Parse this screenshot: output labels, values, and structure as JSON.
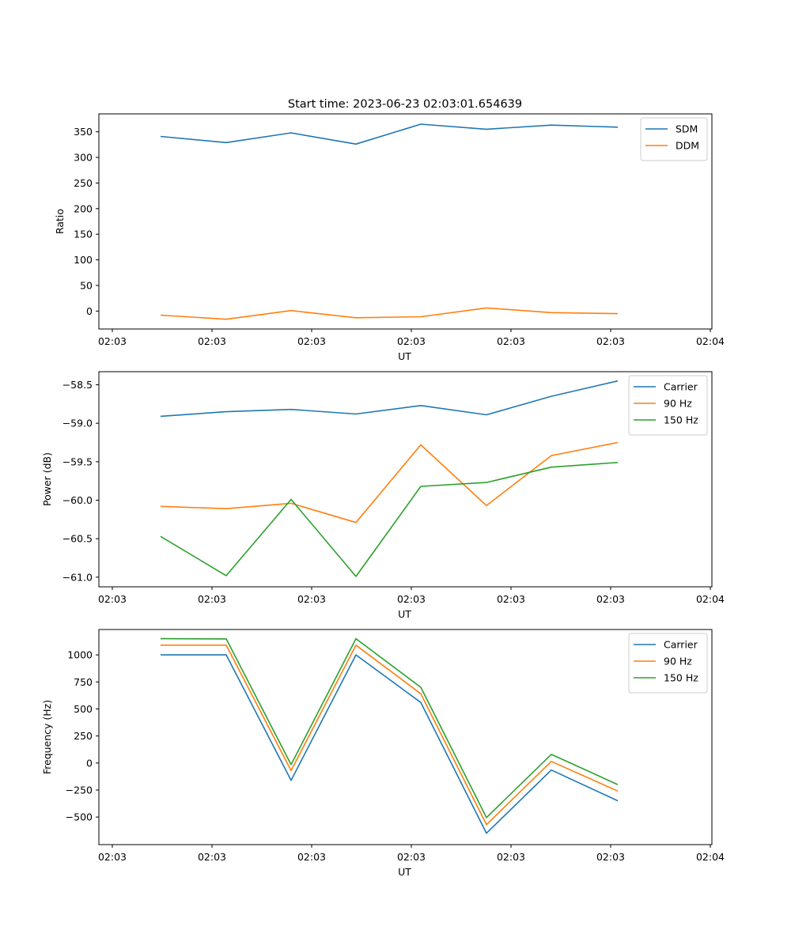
{
  "title": "Start time: 2023-06-23 02:03:01.654639",
  "colors": {
    "blue": "#1f77b4",
    "orange": "#ff7f0e",
    "green": "#2ca02c"
  },
  "chart_data": [
    {
      "type": "line",
      "xlabel": "UT",
      "ylabel": "Ratio",
      "x_tick_labels": [
        "02:03",
        "02:03",
        "02:03",
        "02:03",
        "02:03",
        "02:03",
        "02:04"
      ],
      "y_ticks": [
        0,
        50,
        100,
        150,
        200,
        250,
        300,
        350
      ],
      "y_tick_labels": [
        "0",
        "50",
        "100",
        "150",
        "200",
        "250",
        "300",
        "350"
      ],
      "ylim": [
        -35,
        385
      ],
      "legend_position": "top-right",
      "series": [
        {
          "name": "SDM",
          "color": "#1f77b4",
          "values": [
            341,
            329,
            348,
            326,
            365,
            355,
            363,
            359
          ]
        },
        {
          "name": "DDM",
          "color": "#ff7f0e",
          "values": [
            -8,
            -16,
            1,
            -13,
            -11,
            6,
            -3,
            -5
          ]
        }
      ]
    },
    {
      "type": "line",
      "xlabel": "UT",
      "ylabel": "Power (dB)",
      "x_tick_labels": [
        "02:03",
        "02:03",
        "02:03",
        "02:03",
        "02:03",
        "02:03",
        "02:04"
      ],
      "y_ticks": [
        -61.0,
        -60.5,
        -60.0,
        -59.5,
        -59.0,
        -58.5
      ],
      "y_tick_labels": [
        "−61.0",
        "−60.5",
        "−60.0",
        "−59.5",
        "−59.0",
        "−58.5"
      ],
      "ylim": [
        -61.125,
        -58.33
      ],
      "legend_position": "top-right",
      "series": [
        {
          "name": "Carrier",
          "color": "#1f77b4",
          "values": [
            -58.91,
            -58.85,
            -58.82,
            -58.88,
            -58.77,
            -58.89,
            -58.65,
            -58.45
          ]
        },
        {
          "name": "90 Hz",
          "color": "#ff7f0e",
          "values": [
            -60.08,
            -60.11,
            -60.04,
            -60.29,
            -59.28,
            -60.07,
            -59.42,
            -59.25
          ]
        },
        {
          "name": "150 Hz",
          "color": "#2ca02c",
          "values": [
            -60.47,
            -60.98,
            -59.99,
            -60.99,
            -59.82,
            -59.77,
            -59.57,
            -59.51
          ]
        }
      ]
    },
    {
      "type": "line",
      "xlabel": "UT",
      "ylabel": "Frequency (Hz)",
      "x_tick_labels": [
        "02:03",
        "02:03",
        "02:03",
        "02:03",
        "02:03",
        "02:03",
        "02:04"
      ],
      "y_ticks": [
        -500,
        -250,
        0,
        250,
        500,
        750,
        1000
      ],
      "y_tick_labels": [
        "−500",
        "−250",
        "0",
        "250",
        "500",
        "750",
        "1000"
      ],
      "ylim": [
        -755,
        1235
      ],
      "legend_position": "top-right",
      "series": [
        {
          "name": "Carrier",
          "color": "#1f77b4",
          "values": [
            1000,
            1000,
            -160,
            1000,
            560,
            -650,
            -65,
            -350
          ]
        },
        {
          "name": "90 Hz",
          "color": "#ff7f0e",
          "values": [
            1090,
            1090,
            -70,
            1090,
            640,
            -570,
            15,
            -260
          ]
        },
        {
          "name": "150 Hz",
          "color": "#2ca02c",
          "values": [
            1150,
            1148,
            -15,
            1150,
            700,
            -505,
            80,
            -200
          ]
        }
      ]
    }
  ]
}
